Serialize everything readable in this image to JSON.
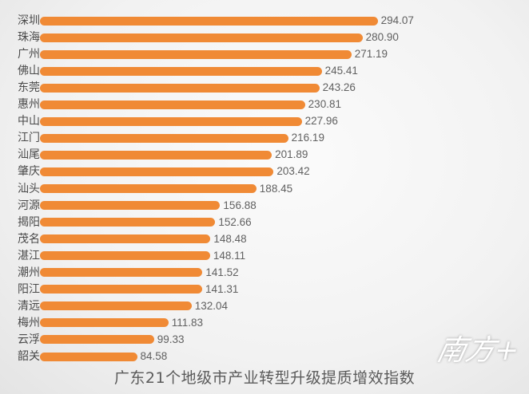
{
  "chart_data": {
    "type": "bar",
    "orientation": "horizontal",
    "title": "广东21个地级市产业转型升级提质增效指数",
    "categories": [
      "深圳",
      "珠海",
      "广州",
      "佛山",
      "东莞",
      "惠州",
      "中山",
      "江门",
      "汕尾",
      "肇庆",
      "汕头",
      "河源",
      "揭阳",
      "茂名",
      "湛江",
      "潮州",
      "阳江",
      "清远",
      "梅州",
      "云浮",
      "韶关"
    ],
    "values": [
      294.07,
      280.9,
      271.19,
      245.41,
      243.26,
      230.81,
      227.96,
      216.19,
      201.89,
      203.42,
      188.45,
      156.88,
      152.66,
      148.48,
      148.11,
      141.52,
      141.31,
      132.04,
      111.83,
      99.33,
      84.58
    ],
    "value_labels": [
      "294.07",
      "280.90",
      "271.19",
      "245.41",
      "243.26",
      "230.81",
      "227.96",
      "216.19",
      "201.89",
      "203.42",
      "188.45",
      "156.88",
      "152.66",
      "148.48",
      "148.11",
      "141.52",
      "141.31",
      "132.04",
      "111.83",
      "99.33",
      "84.58"
    ],
    "bar_color": "#f08a35",
    "axis_visible": false,
    "grid": false,
    "data_labels": true
  },
  "watermark": {
    "text": "南方+"
  }
}
